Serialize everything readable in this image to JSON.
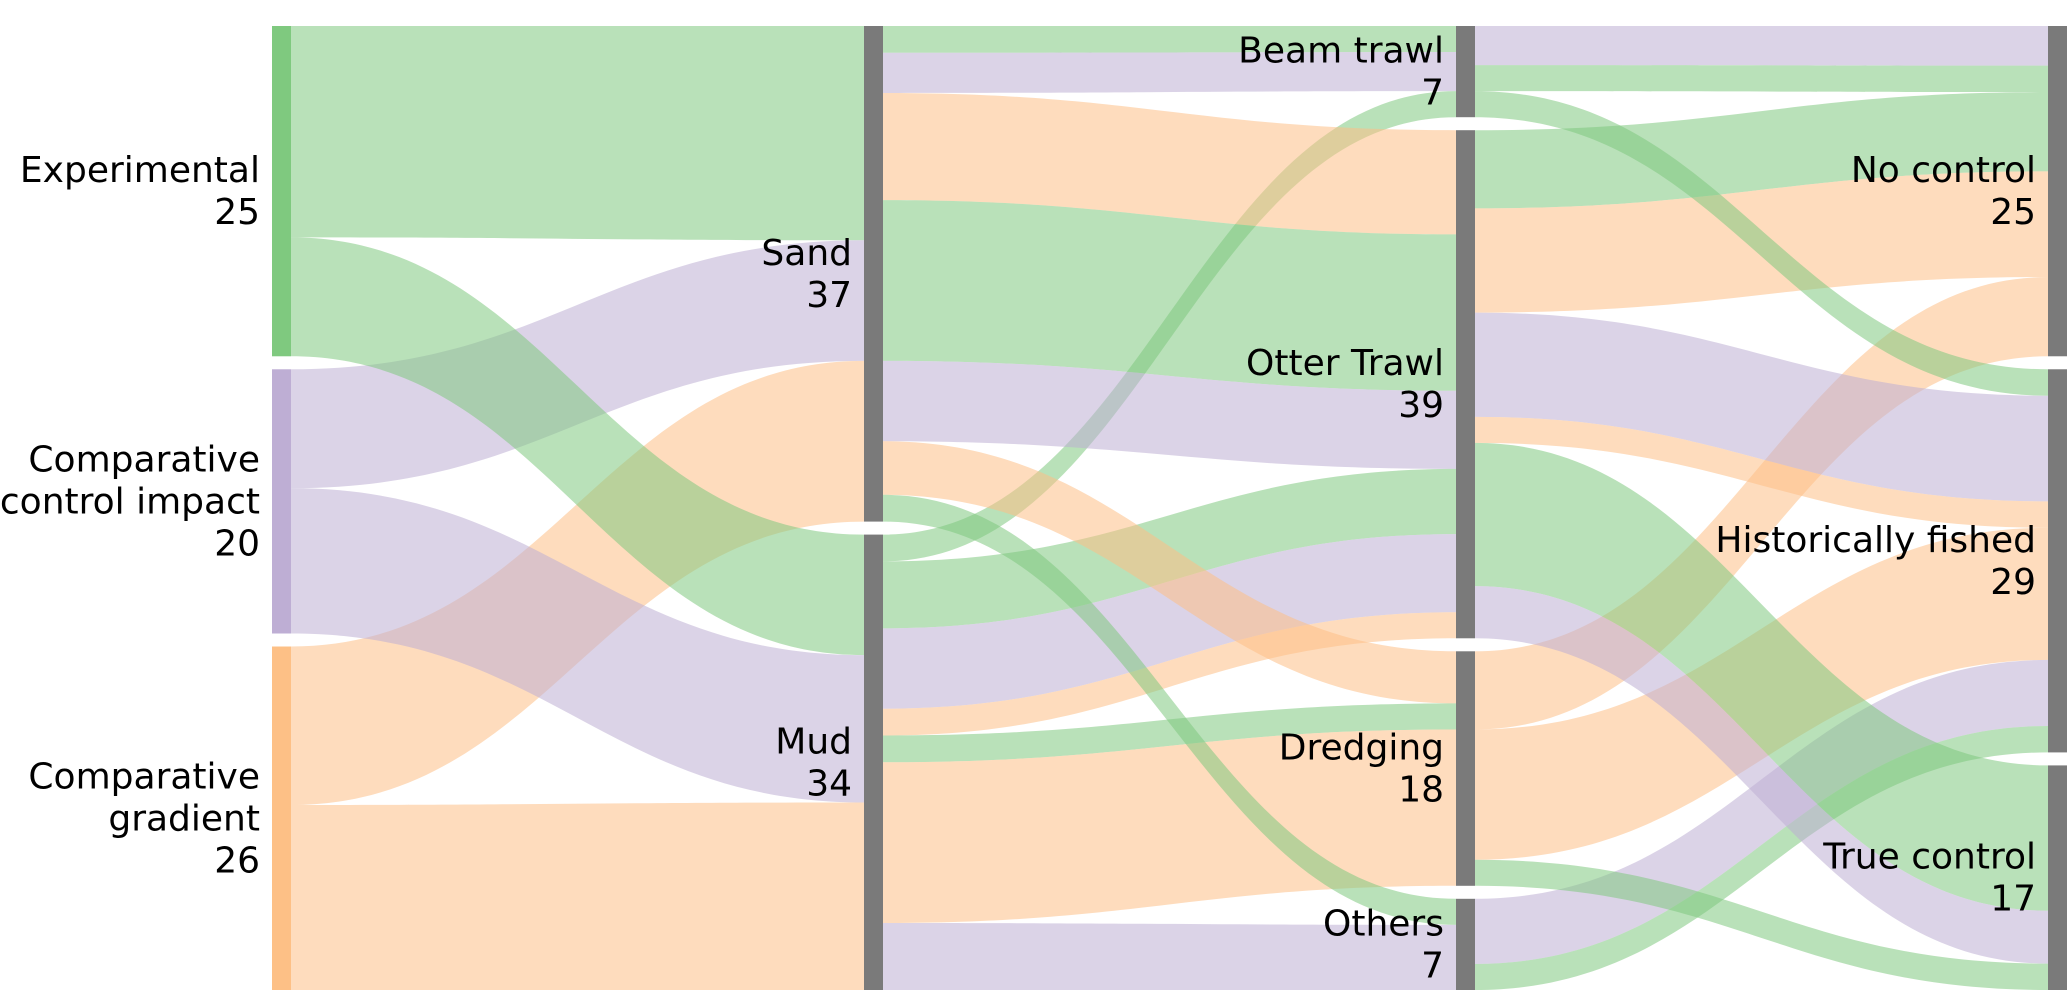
{
  "chart_data": {
    "type": "sankey",
    "title": "",
    "palette": {
      "green": "#7fc97f",
      "purple": "#beaed4",
      "orange": "#fdc086",
      "gray": "#7a7a7a"
    },
    "flow_opacity": 0.55,
    "total_flow": 71,
    "columns": [
      {
        "id": "study-design",
        "nodes": [
          "experimental",
          "comparative-control-impact",
          "comparative-gradient"
        ]
      },
      {
        "id": "substrate",
        "nodes": [
          "sand",
          "mud"
        ]
      },
      {
        "id": "gear",
        "nodes": [
          "beam-trawl",
          "otter-trawl",
          "dredging",
          "others"
        ]
      },
      {
        "id": "control-type",
        "nodes": [
          "no-control",
          "historically-fished",
          "true-control"
        ]
      }
    ],
    "nodes": {
      "experimental": {
        "label_lines": [
          "Experimental"
        ],
        "value": 25,
        "color": "green"
      },
      "comparative-control-impact": {
        "label_lines": [
          "Comparative",
          "control impact"
        ],
        "value": 20,
        "color": "purple"
      },
      "comparative-gradient": {
        "label_lines": [
          "Comparative",
          "gradient"
        ],
        "value": 26,
        "color": "orange"
      },
      "sand": {
        "label_lines": [
          "Sand"
        ],
        "value": 37,
        "color": "gray"
      },
      "mud": {
        "label_lines": [
          "Mud"
        ],
        "value": 34,
        "color": "gray"
      },
      "beam-trawl": {
        "label_lines": [
          "Beam trawl"
        ],
        "value": 7,
        "color": "gray"
      },
      "otter-trawl": {
        "label_lines": [
          "Otter Trawl"
        ],
        "value": 39,
        "color": "gray"
      },
      "dredging": {
        "label_lines": [
          "Dredging"
        ],
        "value": 18,
        "color": "gray"
      },
      "others": {
        "label_lines": [
          "Others"
        ],
        "value": 7,
        "color": "gray"
      },
      "no-control": {
        "label_lines": [
          "No control"
        ],
        "value": 25,
        "color": "gray"
      },
      "historically-fished": {
        "label_lines": [
          "Historically fished"
        ],
        "value": 29,
        "color": "gray"
      },
      "true-control": {
        "label_lines": [
          "True control"
        ],
        "value": 17,
        "color": "gray"
      }
    },
    "links": [
      {
        "source": "experimental",
        "target": "sand",
        "value": 16,
        "color": "green"
      },
      {
        "source": "comparative-control-impact",
        "target": "sand",
        "value": 9,
        "color": "purple"
      },
      {
        "source": "comparative-gradient",
        "target": "sand",
        "value": 12,
        "color": "orange"
      },
      {
        "source": "experimental",
        "target": "mud",
        "value": 9,
        "color": "green"
      },
      {
        "source": "comparative-control-impact",
        "target": "mud",
        "value": 11,
        "color": "purple"
      },
      {
        "source": "comparative-gradient",
        "target": "mud",
        "value": 14,
        "color": "orange"
      },
      {
        "source": "sand",
        "target": "beam-trawl",
        "value": 2,
        "color": "green"
      },
      {
        "source": "sand",
        "target": "beam-trawl",
        "value": 3,
        "color": "purple"
      },
      {
        "source": "mud",
        "target": "beam-trawl",
        "value": 2,
        "color": "green"
      },
      {
        "source": "sand",
        "target": "otter-trawl",
        "value": 8,
        "color": "orange"
      },
      {
        "source": "sand",
        "target": "otter-trawl",
        "value": 12,
        "color": "green"
      },
      {
        "source": "sand",
        "target": "otter-trawl",
        "value": 6,
        "color": "purple"
      },
      {
        "source": "mud",
        "target": "otter-trawl",
        "value": 5,
        "color": "green"
      },
      {
        "source": "mud",
        "target": "otter-trawl",
        "value": 6,
        "color": "purple"
      },
      {
        "source": "mud",
        "target": "otter-trawl",
        "value": 2,
        "color": "orange"
      },
      {
        "source": "sand",
        "target": "dredging",
        "value": 4,
        "color": "orange"
      },
      {
        "source": "mud",
        "target": "dredging",
        "value": 2,
        "color": "green"
      },
      {
        "source": "mud",
        "target": "dredging",
        "value": 12,
        "color": "orange"
      },
      {
        "source": "sand",
        "target": "others",
        "value": 2,
        "color": "green"
      },
      {
        "source": "mud",
        "target": "others",
        "value": 5,
        "color": "purple"
      },
      {
        "source": "beam-trawl",
        "target": "no-control",
        "value": 3,
        "color": "purple"
      },
      {
        "source": "beam-trawl",
        "target": "no-control",
        "value": 2,
        "color": "green"
      },
      {
        "source": "otter-trawl",
        "target": "no-control",
        "value": 6,
        "color": "green"
      },
      {
        "source": "otter-trawl",
        "target": "no-control",
        "value": 8,
        "color": "orange"
      },
      {
        "source": "dredging",
        "target": "no-control",
        "value": 6,
        "color": "orange"
      },
      {
        "source": "beam-trawl",
        "target": "historically-fished",
        "value": 2,
        "color": "green"
      },
      {
        "source": "otter-trawl",
        "target": "historically-fished",
        "value": 8,
        "color": "purple"
      },
      {
        "source": "otter-trawl",
        "target": "historically-fished",
        "value": 2,
        "color": "orange"
      },
      {
        "source": "dredging",
        "target": "historically-fished",
        "value": 10,
        "color": "orange"
      },
      {
        "source": "others",
        "target": "historically-fished",
        "value": 5,
        "color": "purple"
      },
      {
        "source": "others",
        "target": "historically-fished",
        "value": 2,
        "color": "green"
      },
      {
        "source": "otter-trawl",
        "target": "true-control",
        "value": 11,
        "color": "green"
      },
      {
        "source": "otter-trawl",
        "target": "true-control",
        "value": 4,
        "color": "purple"
      },
      {
        "source": "dredging",
        "target": "true-control",
        "value": 2,
        "color": "green"
      }
    ]
  }
}
